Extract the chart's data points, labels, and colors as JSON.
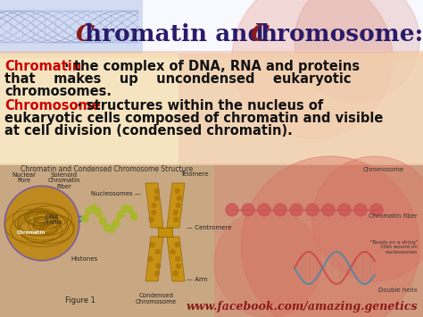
{
  "title_C1": "C",
  "title_rest1": "hromatin and ",
  "title_C2": "C",
  "title_rest2": "hromosome:",
  "title_color_C": "#8B1A1A",
  "title_color_rest": "#2B1B6B",
  "title_fontsize": 19,
  "bg_top_color": "#FFFFFF",
  "bg_dna_color": "#8899CC",
  "text_area_bg": "#F5DEB3",
  "text_area_alpha": 0.82,
  "chromatin_label": "Chromatin",
  "chromatin_color": "#CC0000",
  "chromatin_def_line1": " · the complex of DNA, RNA and proteins",
  "chromatin_def_line2": "that    makes    up    uncondensed    eukaryotic",
  "chromatin_def_line3": "chromosomes.",
  "chromosome_label": "Chromosome",
  "chromosome_color": "#CC0000",
  "chromosome_def_line1": " · structures within the nucleus of",
  "chromosome_def_line2": "eukaryotic cells composed of chromatin and visible",
  "chromosome_def_line3": "at cell division (condensed chromatin).",
  "def_fontsize": 10.5,
  "def_color": "#111111",
  "bottom_bg": "#c8a882",
  "bottom_left_bg": "#d4a868",
  "url_text": "www.facebook.com/amazing.genetics",
  "url_color": "#8B1A1A",
  "url_fontsize": 9,
  "caption_text": "Chromatin and Condensed Chromosome Structure",
  "caption_fontsize": 5.5,
  "fig_label": "Figure 1",
  "condensed_label": "Condensed\nChromosome",
  "label_fontsize": 5,
  "figsize": [
    4.74,
    3.55
  ],
  "dpi": 100
}
